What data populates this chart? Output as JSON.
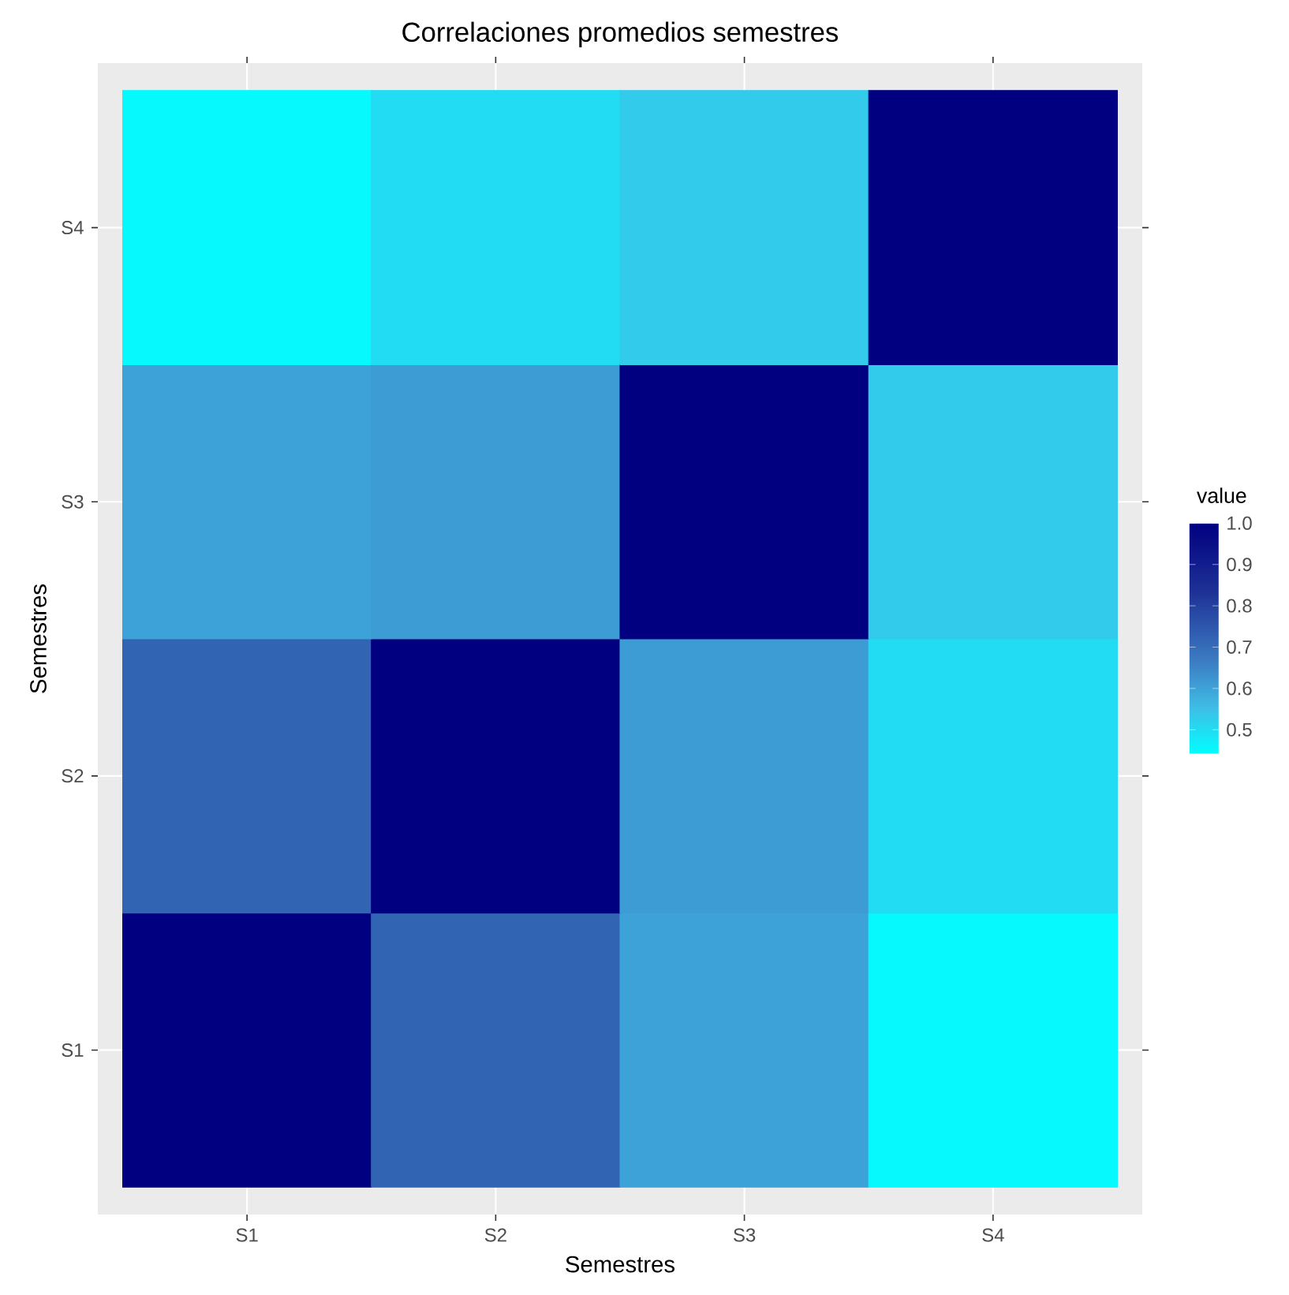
{
  "chart_data": {
    "type": "heatmap",
    "title": "Correlaciones promedios semestres",
    "xlabel": "Semestres",
    "ylabel": "Semestres",
    "clabel": "value",
    "categories": [
      "S1",
      "S2",
      "S3",
      "S4"
    ],
    "y_categories": [
      "S4",
      "S3",
      "S2",
      "S1"
    ],
    "cells": [
      [
        0.45,
        0.5,
        0.53,
        1.0
      ],
      [
        0.6,
        0.61,
        1.0,
        0.53
      ],
      [
        0.72,
        1.0,
        0.61,
        0.5
      ],
      [
        1.0,
        0.72,
        0.6,
        0.45
      ]
    ],
    "clim": [
      0.44,
      1.0
    ],
    "cticks": [
      {
        "value": 0.5,
        "label": "0.5"
      },
      {
        "value": 0.6,
        "label": "0.6"
      },
      {
        "value": 0.7,
        "label": "0.7"
      },
      {
        "value": 0.8,
        "label": "0.8"
      },
      {
        "value": 0.9,
        "label": "0.9"
      },
      {
        "value": 1.0,
        "label": "1.0"
      }
    ],
    "grid": true
  }
}
